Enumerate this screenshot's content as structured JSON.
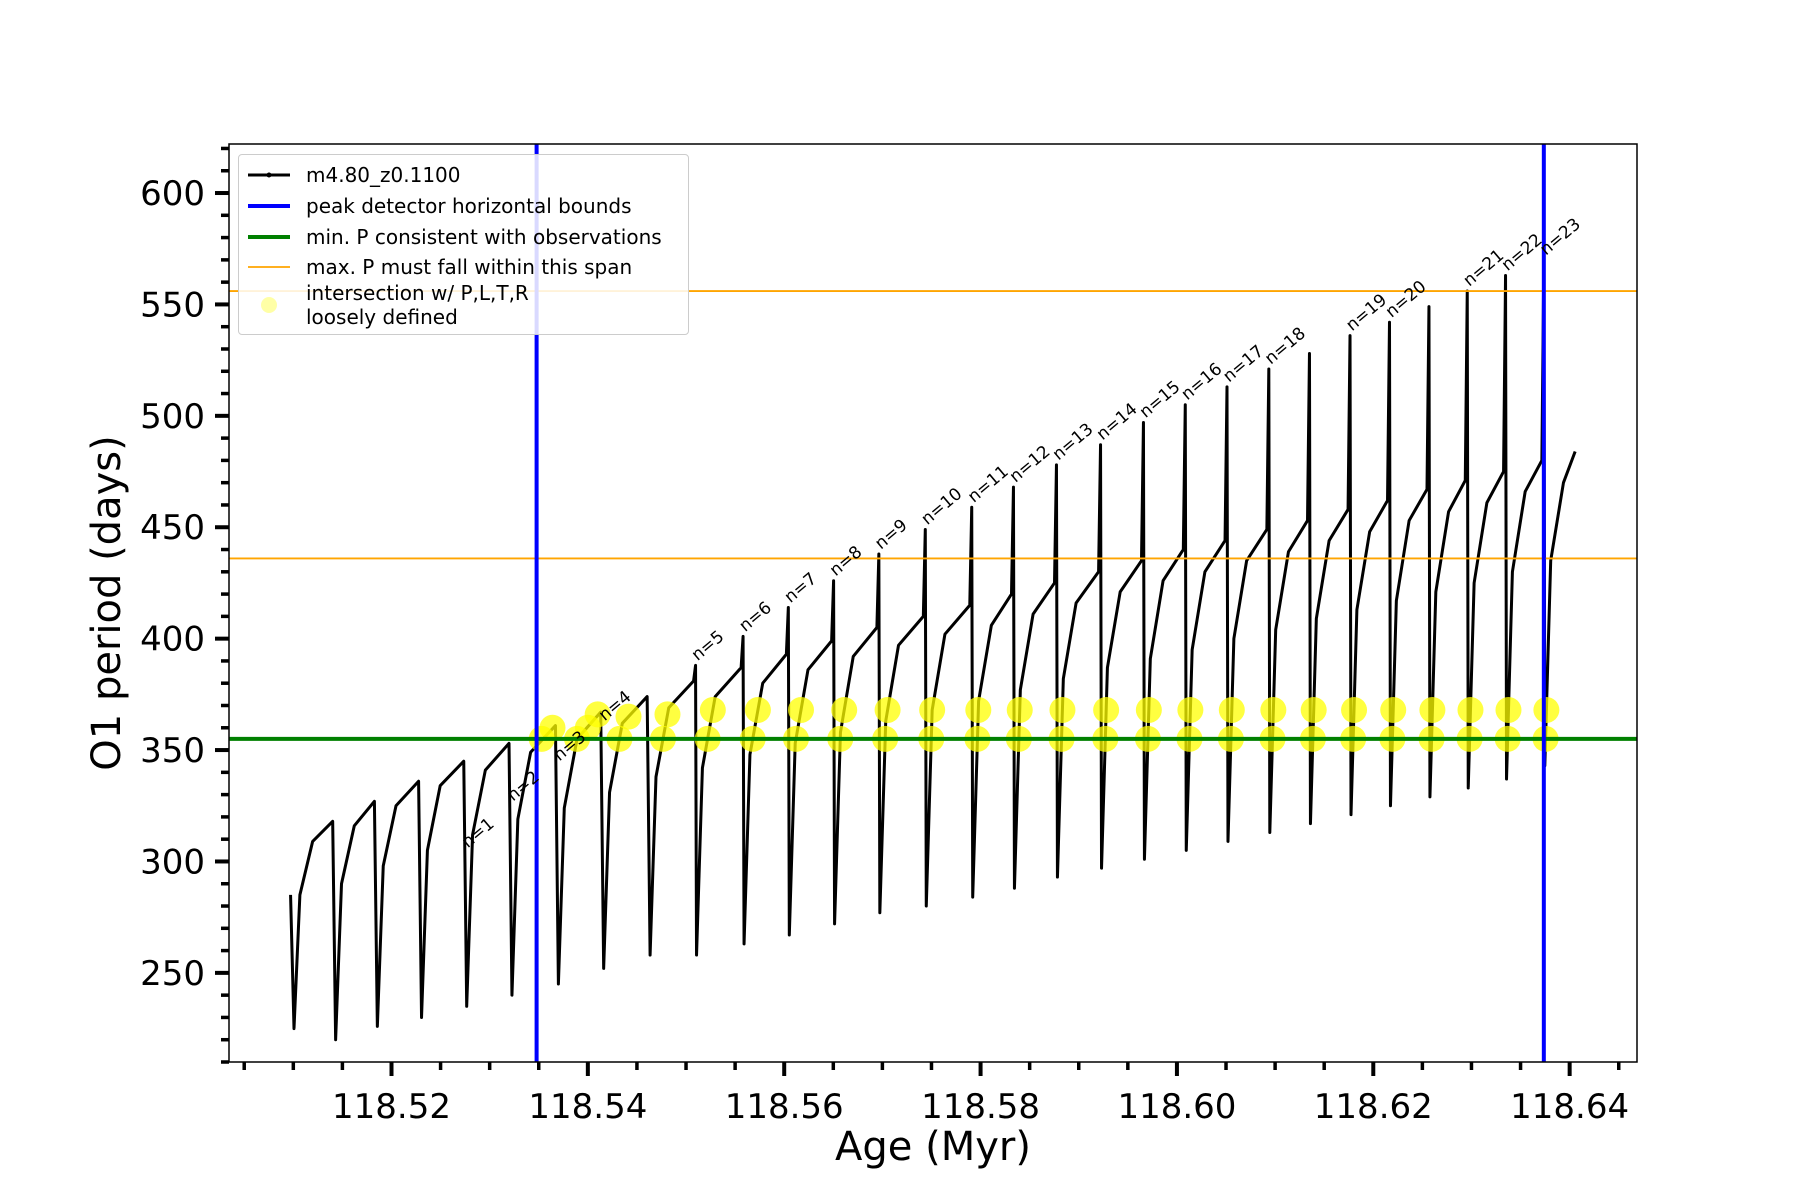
{
  "chart_data": {
    "type": "line",
    "x_label": "Age (Myr)",
    "y_label": "O1 period (days)",
    "xlim": [
      118.50345,
      118.64686
    ],
    "ylim": [
      210,
      622
    ],
    "xticks": [
      118.52,
      118.54,
      118.56,
      118.58,
      {
        "value": 118.6,
        "label": "118.60"
      },
      118.62,
      118.64
    ],
    "xticks_minor": [
      118.505,
      118.51,
      118.515,
      118.525,
      118.53,
      118.535,
      118.545,
      118.55,
      118.555,
      118.565,
      118.57,
      118.575,
      118.585,
      118.59,
      118.595,
      118.605,
      118.61,
      118.615,
      118.625,
      118.63,
      118.635,
      118.645
    ],
    "yticks": [
      250,
      300,
      350,
      400,
      450,
      500,
      550,
      600
    ],
    "yticks_minor": [
      210,
      220,
      230,
      240,
      260,
      270,
      280,
      290,
      310,
      320,
      330,
      340,
      360,
      370,
      380,
      390,
      410,
      420,
      430,
      440,
      460,
      470,
      480,
      490,
      510,
      520,
      530,
      540,
      560,
      570,
      580,
      590,
      610,
      620
    ],
    "grid": false,
    "legend": "upper left",
    "series": [
      {
        "name": "m4.80_z0.1100",
        "type": "line",
        "color": "#000000",
        "x": [
          118.50972,
          118.51007,
          118.51067,
          118.51197,
          118.51401,
          118.51431,
          118.51491,
          118.51621,
          118.51826,
          118.51856,
          118.51916,
          118.52046,
          118.52276,
          118.52306,
          118.52366,
          118.52496,
          118.52736,
          118.52766,
          118.52826,
          118.52956,
          118.53197,
          118.53227,
          118.53287,
          118.53417,
          118.5367,
          118.537,
          118.5376,
          118.5389,
          118.54131,
          118.54161,
          118.54221,
          118.54351,
          118.54604,
          118.54634,
          118.54694,
          118.54824,
          118.55077,
          118.55097,
          118.55107,
          118.55167,
          118.55297,
          118.55561,
          118.55581,
          118.55591,
          118.55651,
          118.55781,
          118.56022,
          118.56042,
          118.56052,
          118.56112,
          118.56242,
          118.56483,
          118.56503,
          118.56513,
          118.56573,
          118.56703,
          118.56944,
          118.56964,
          118.56974,
          118.57034,
          118.57164,
          118.57417,
          118.57437,
          118.57447,
          118.57507,
          118.57637,
          118.5789,
          118.5791,
          118.5792,
          118.5798,
          118.5811,
          118.58315,
          118.58335,
          118.58345,
          118.58405,
          118.58535,
          118.58753,
          118.58773,
          118.58783,
          118.58843,
          118.58973,
          118.59202,
          118.59222,
          118.59232,
          118.59292,
          118.59422,
          118.59639,
          118.59659,
          118.59669,
          118.59729,
          118.59859,
          118.60065,
          118.60085,
          118.60095,
          118.60155,
          118.60285,
          118.6049,
          118.6051,
          118.6052,
          118.6058,
          118.6071,
          118.60916,
          118.60936,
          118.60946,
          118.61006,
          118.61136,
          118.6133,
          118.6135,
          118.6136,
          118.6142,
          118.6155,
          118.61743,
          118.61763,
          118.61773,
          118.61833,
          118.61963,
          118.62145,
          118.62165,
          118.62175,
          118.62235,
          118.62365,
          118.62547,
          118.62567,
          118.62577,
          118.62637,
          118.62767,
          118.62937,
          118.62957,
          118.62967,
          118.63027,
          118.63157,
          118.63327,
          118.63347,
          118.63357,
          118.63417,
          118.63547,
          118.63717,
          118.63737,
          118.63747,
          118.63807,
          118.63937,
          118.64056
        ],
        "values": [
          285,
          225,
          285,
          309,
          318,
          220,
          290,
          316,
          327,
          226,
          298,
          325,
          336,
          230,
          305,
          334,
          345,
          235,
          312,
          341,
          353,
          240,
          319,
          349,
          361,
          245,
          324,
          355,
          367,
          252,
          331,
          362,
          374,
          258,
          338,
          369,
          381,
          388,
          258,
          342,
          374,
          387,
          401,
          263,
          348,
          380,
          393,
          414,
          267,
          353,
          386,
          399,
          426,
          272,
          358,
          392,
          405,
          438,
          277,
          363,
          397,
          410,
          449,
          280,
          368,
          402,
          415,
          459,
          284,
          372,
          406,
          420,
          468,
          288,
          377,
          411,
          425,
          478,
          293,
          382,
          416,
          430,
          487,
          297,
          387,
          421,
          435,
          497,
          301,
          391,
          426,
          440,
          505,
          305,
          395,
          430,
          444,
          513,
          309,
          400,
          435,
          449,
          521,
          313,
          404,
          439,
          453,
          528,
          317,
          409,
          444,
          458,
          536,
          321,
          413,
          448,
          462,
          542,
          325,
          417,
          453,
          467,
          549,
          329,
          421,
          457,
          471,
          556,
          333,
          425,
          461,
          475,
          563,
          337,
          430,
          466,
          480,
          570,
          343,
          435,
          470,
          484
        ]
      },
      {
        "name": "peak detector horizontal bounds",
        "type": "vline",
        "color": "#0000ff",
        "x": [
          118.53478,
          118.63737
        ]
      },
      {
        "name": "min. P consistent with observations",
        "type": "hline",
        "color": "#008000",
        "values": [
          355
        ]
      },
      {
        "name": "max. P must fall within this span",
        "type": "hline",
        "color": "#ffa500",
        "values": [
          436,
          556
        ]
      },
      {
        "name": "intersection w/ P,L,T,R\nloosely defined",
        "type": "scatter",
        "color": "#ffff00",
        "x": [
          118.5353,
          118.5364,
          118.5389,
          118.54,
          118.541,
          118.54322,
          118.54414,
          118.54765,
          118.54811,
          118.5522,
          118.55273,
          118.55679,
          118.55732,
          118.5612,
          118.56171,
          118.56571,
          118.56611,
          118.57028,
          118.57053,
          118.57498,
          118.57507,
          118.57968,
          118.57977,
          118.5839,
          118.58399,
          118.58825,
          118.58834,
          118.59271,
          118.59279,
          118.59705,
          118.59714,
          118.60128,
          118.60137,
          118.6055,
          118.60559,
          118.60974,
          118.60982,
          118.61385,
          118.61393,
          118.61795,
          118.61804,
          118.62195,
          118.62203,
          118.62594,
          118.62602,
          118.62981,
          118.6299,
          118.63369,
          118.63377,
          118.63755,
          118.63763
        ],
        "values": [
          355,
          360,
          355,
          360,
          366,
          355,
          365,
          355,
          366,
          355,
          368,
          355,
          368,
          355,
          368,
          355,
          368,
          355,
          368,
          355,
          368,
          355,
          368,
          355,
          368,
          355,
          368,
          355,
          368,
          355,
          368,
          355,
          368,
          355,
          368,
          355,
          368,
          355,
          368,
          355,
          368,
          355,
          368,
          355,
          368,
          355,
          368,
          355,
          368,
          355,
          368
        ]
      }
    ],
    "annotations": [
      {
        "text": "n=1",
        "x": 118.52756,
        "y": 304
      },
      {
        "text": "n=2",
        "x": 118.53217,
        "y": 325
      },
      {
        "text": "n=3",
        "x": 118.5369,
        "y": 343
      },
      {
        "text": "n=4",
        "x": 118.54151,
        "y": 361
      },
      {
        "text": "n=5",
        "x": 118.55097,
        "y": 388
      },
      {
        "text": "n=6",
        "x": 118.55581,
        "y": 401
      },
      {
        "text": "n=7",
        "x": 118.56042,
        "y": 414
      },
      {
        "text": "n=8",
        "x": 118.56503,
        "y": 426
      },
      {
        "text": "n=9",
        "x": 118.56964,
        "y": 438
      },
      {
        "text": "n=10",
        "x": 118.57437,
        "y": 449
      },
      {
        "text": "n=11",
        "x": 118.5791,
        "y": 459
      },
      {
        "text": "n=12",
        "x": 118.58335,
        "y": 468
      },
      {
        "text": "n=13",
        "x": 118.58773,
        "y": 478
      },
      {
        "text": "n=14",
        "x": 118.59222,
        "y": 487
      },
      {
        "text": "n=15",
        "x": 118.59659,
        "y": 497
      },
      {
        "text": "n=16",
        "x": 118.60085,
        "y": 505
      },
      {
        "text": "n=17",
        "x": 118.6051,
        "y": 513
      },
      {
        "text": "n=18",
        "x": 118.60936,
        "y": 521
      },
      {
        "text": "n=19",
        "x": 118.61763,
        "y": 536
      },
      {
        "text": "n=20",
        "x": 118.62165,
        "y": 542
      },
      {
        "text": "n=21",
        "x": 118.62957,
        "y": 556
      },
      {
        "text": "n=22",
        "x": 118.63347,
        "y": 563
      },
      {
        "text": "n=23",
        "x": 118.63737,
        "y": 570
      }
    ]
  }
}
